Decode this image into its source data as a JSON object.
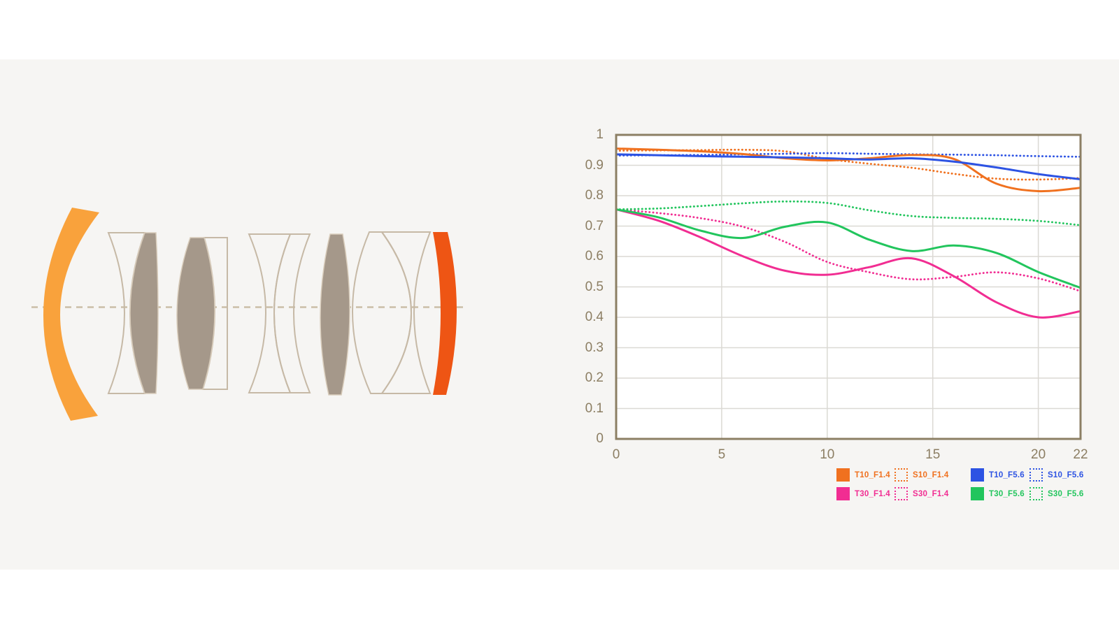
{
  "page": {
    "background": "#FFFFFF",
    "panel_background": "#F6F5F3"
  },
  "lens_diagram": {
    "element_count": 9,
    "colors": {
      "front_element": "#F9A23C",
      "rear_element": "#EE5514",
      "glass_fill": "#A5988A",
      "glass_edge": "#D8CCBB",
      "outline": "#C6B9A6",
      "axis_line": "#CBBEA8"
    }
  },
  "chart_data": {
    "type": "line",
    "title": "",
    "xlabel": "",
    "ylabel": "",
    "xlim": [
      0,
      22
    ],
    "ylim": [
      0,
      1
    ],
    "x_ticks": [
      0,
      5,
      10,
      15,
      20,
      22
    ],
    "y_ticks": [
      0,
      0.1,
      0.2,
      0.3,
      0.4,
      0.5,
      0.6,
      0.7,
      0.8,
      0.9,
      1
    ],
    "grid": true,
    "legend_position": "below-right",
    "frame_color": "#8C7F64",
    "grid_color": "#DBD9D4",
    "tick_color": "#8C7E63",
    "plot_background": "#FFFFFF",
    "x": [
      0,
      2,
      4,
      6,
      8,
      10,
      12,
      14,
      16,
      18,
      20,
      22
    ],
    "series": [
      {
        "name": "T10_F1.4",
        "color": "#F0711F",
        "line_style": "solid",
        "values": [
          0.955,
          0.951,
          0.946,
          0.937,
          0.923,
          0.916,
          0.923,
          0.934,
          0.921,
          0.84,
          0.815,
          0.826
        ]
      },
      {
        "name": "S10_F1.4",
        "color": "#F0711F",
        "line_style": "dotted",
        "values": [
          0.948,
          0.949,
          0.95,
          0.951,
          0.946,
          0.921,
          0.905,
          0.892,
          0.872,
          0.856,
          0.853,
          0.858
        ]
      },
      {
        "name": "T10_F5.6",
        "color": "#2D53E3",
        "line_style": "solid",
        "values": [
          0.936,
          0.933,
          0.93,
          0.928,
          0.926,
          0.923,
          0.919,
          0.923,
          0.912,
          0.893,
          0.871,
          0.854
        ]
      },
      {
        "name": "S10_F5.6",
        "color": "#2D53E3",
        "line_style": "dotted",
        "values": [
          0.932,
          0.933,
          0.934,
          0.936,
          0.938,
          0.94,
          0.938,
          0.936,
          0.935,
          0.933,
          0.93,
          0.928
        ]
      },
      {
        "name": "T30_F1.4",
        "color": "#F12D92",
        "line_style": "solid",
        "values": [
          0.755,
          0.718,
          0.663,
          0.601,
          0.553,
          0.54,
          0.565,
          0.594,
          0.535,
          0.45,
          0.4,
          0.42
        ]
      },
      {
        "name": "S30_F1.4",
        "color": "#F12D92",
        "line_style": "dotted",
        "values": [
          0.755,
          0.743,
          0.726,
          0.698,
          0.648,
          0.582,
          0.548,
          0.525,
          0.533,
          0.548,
          0.528,
          0.486
        ]
      },
      {
        "name": "T30_F5.6",
        "color": "#22C55D",
        "line_style": "solid",
        "values": [
          0.755,
          0.729,
          0.685,
          0.661,
          0.698,
          0.712,
          0.655,
          0.618,
          0.636,
          0.612,
          0.549,
          0.497
        ]
      },
      {
        "name": "S30_F5.6",
        "color": "#22C55D",
        "line_style": "dotted",
        "values": [
          0.755,
          0.758,
          0.766,
          0.775,
          0.781,
          0.776,
          0.752,
          0.733,
          0.727,
          0.724,
          0.717,
          0.703
        ]
      }
    ],
    "legend_rows": [
      [
        "T10_F1.4",
        "S10_F1.4",
        "T10_F5.6",
        "S10_F5.6"
      ],
      [
        "T30_F1.4",
        "S30_F1.4",
        "T30_F5.6",
        "S30_F5.6"
      ]
    ]
  }
}
